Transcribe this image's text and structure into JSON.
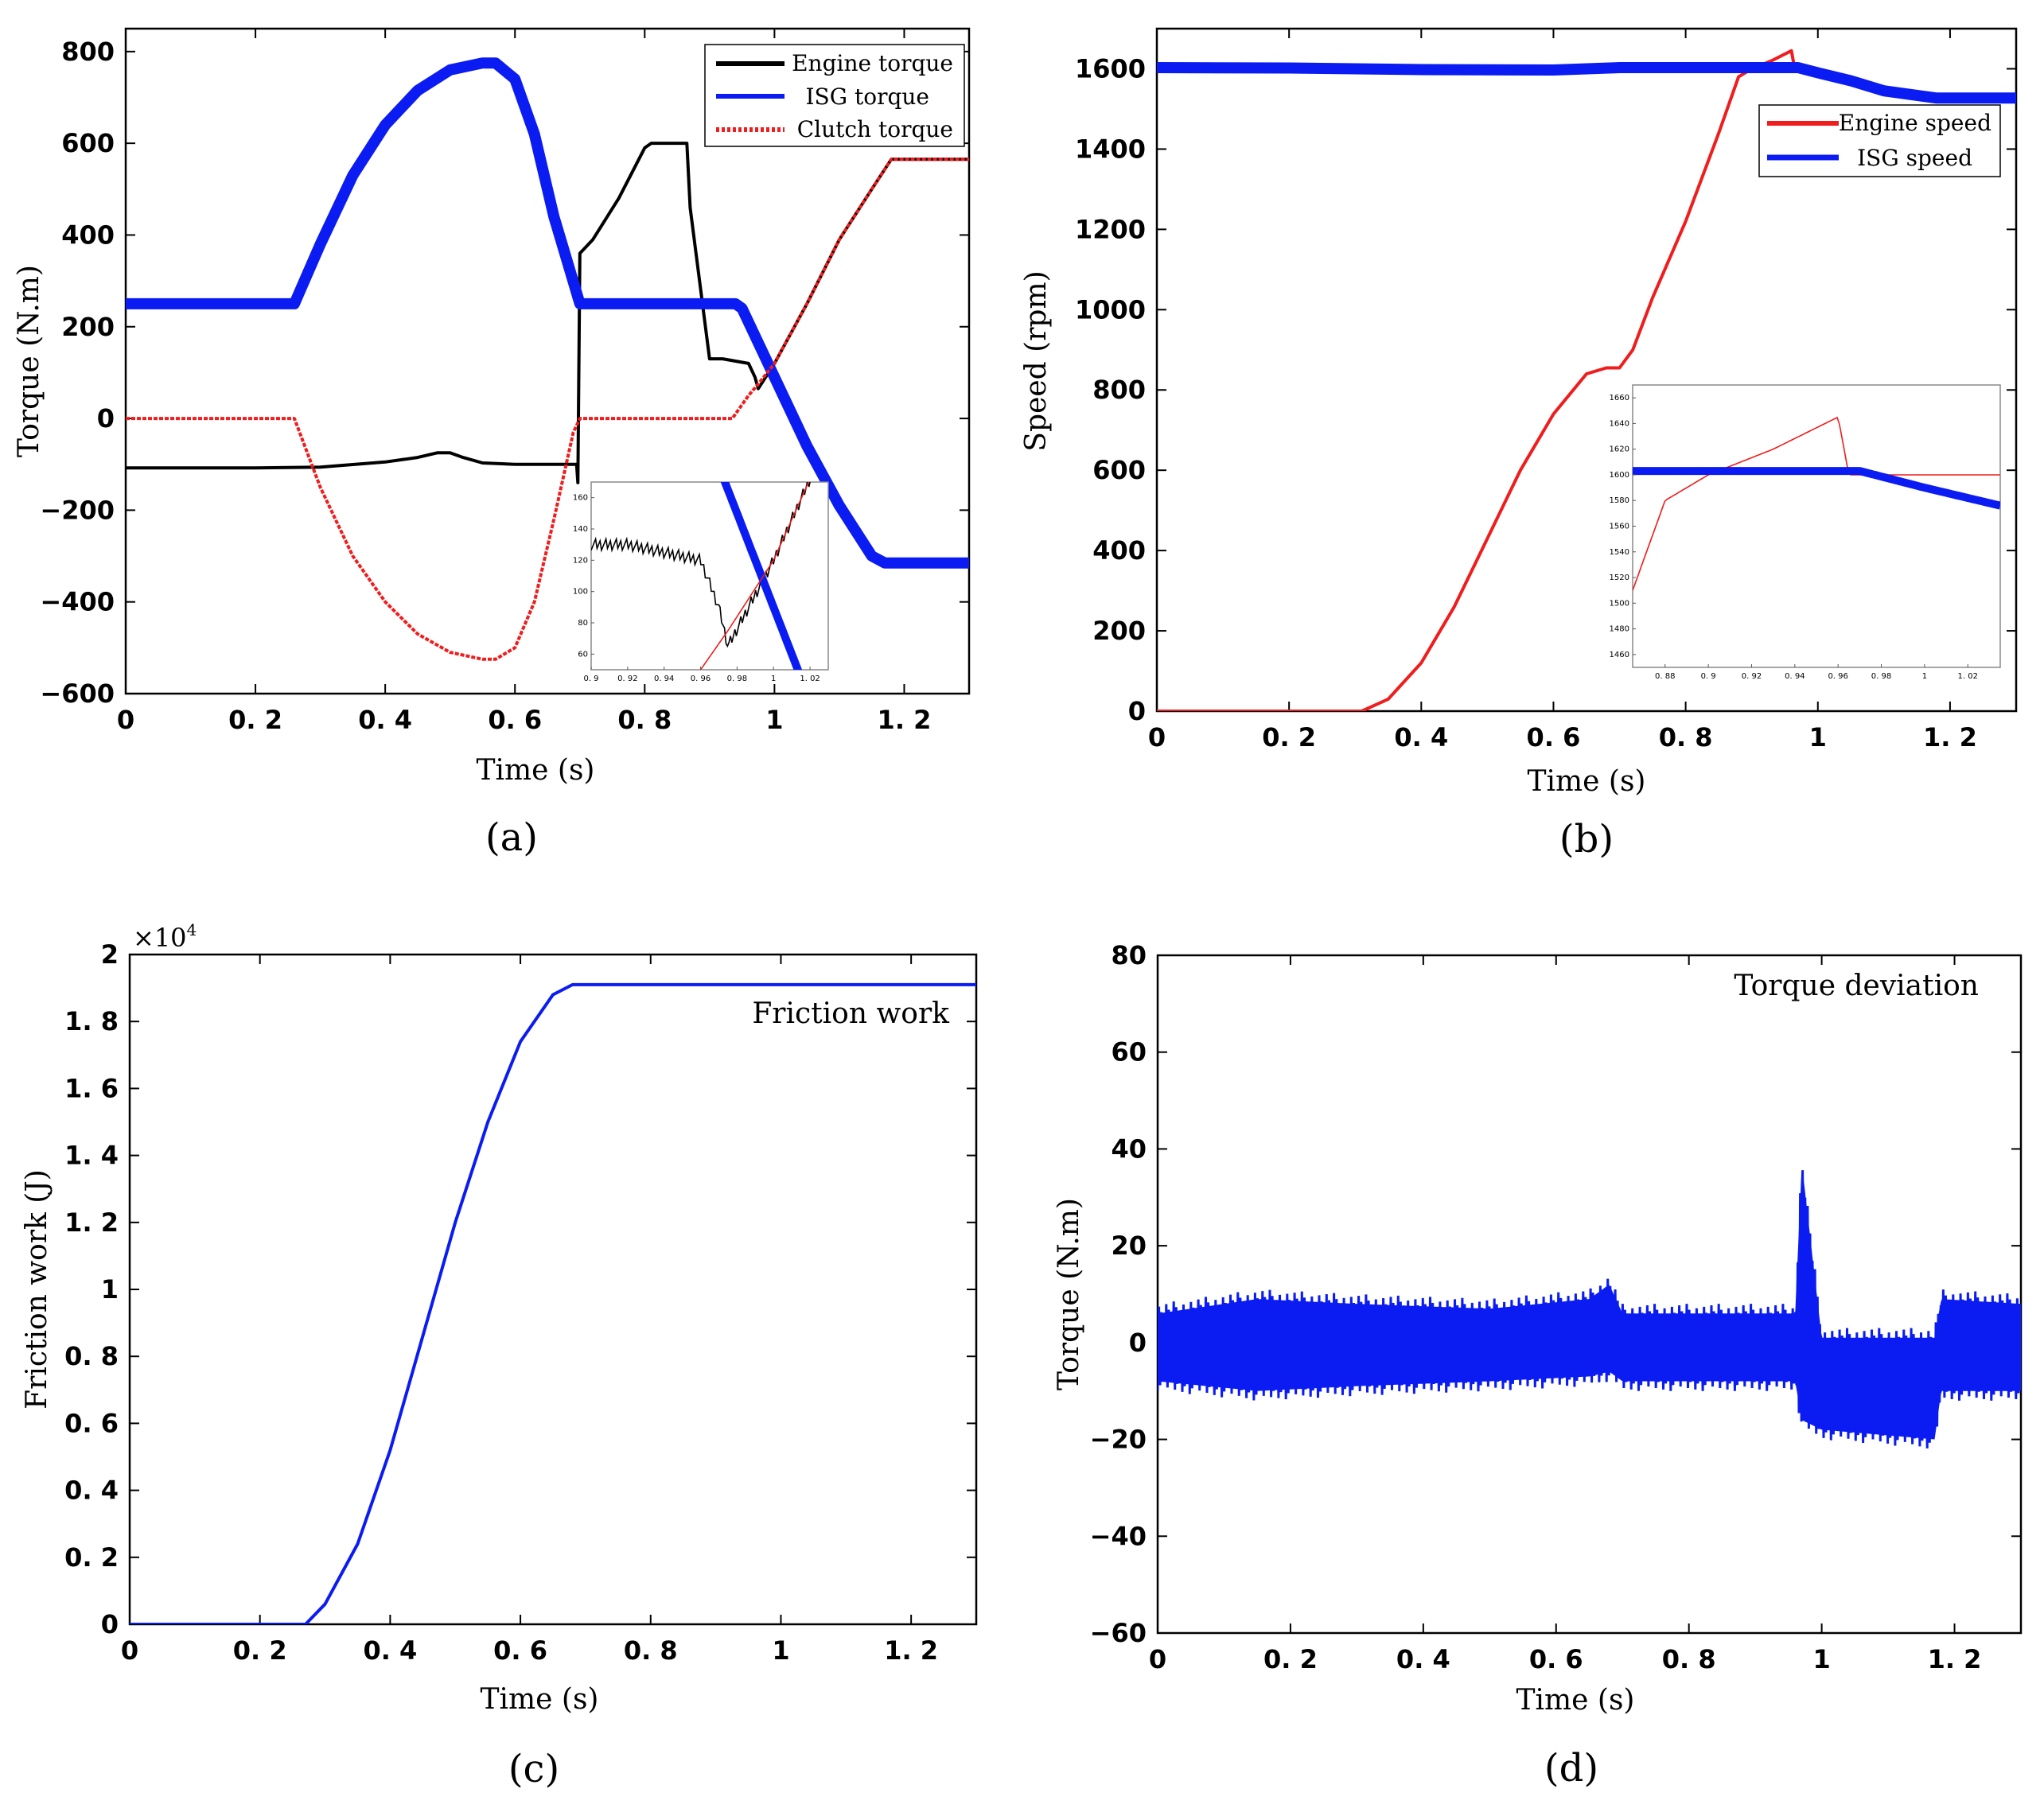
{
  "colors": {
    "engine": "#000000",
    "isg": "#0b1cf2",
    "clutch": "#ef1d1d",
    "engine_speed": "#ef1d1d"
  },
  "chart_data": [
    {
      "id": "a",
      "type": "line",
      "panel_label": "(a)",
      "xlabel": "Time  (s)",
      "ylabel": "Torque (N.m)",
      "xlim": [
        0,
        1.3
      ],
      "ylim": [
        -600,
        850
      ],
      "xticks": [
        0,
        0.2,
        0.4,
        0.6,
        0.8,
        1,
        1.2
      ],
      "xtick_labels": [
        "0",
        "0. 2",
        "0. 4",
        "0. 6",
        "0. 8",
        "1",
        "1. 2"
      ],
      "yticks": [
        -600,
        -400,
        -200,
        0,
        200,
        400,
        600,
        800
      ],
      "ytick_labels": [
        "−600",
        "−400",
        "−200",
        "0",
        "200",
        "400",
        "600",
        "800"
      ],
      "legend_position": "top-right",
      "series": [
        {
          "name": "Engine torque",
          "color": "#000000",
          "style": "line",
          "x": [
            0,
            0.2,
            0.3,
            0.4,
            0.45,
            0.48,
            0.5,
            0.52,
            0.55,
            0.6,
            0.65,
            0.695,
            0.697,
            0.7,
            0.72,
            0.76,
            0.8,
            0.81,
            0.84,
            0.865,
            0.87,
            0.9,
            0.92,
            0.96,
            0.97,
            0.975,
            1.0,
            1.05,
            1.1,
            1.15,
            1.18,
            1.2,
            1.25,
            1.3
          ],
          "y": [
            -108,
            -108,
            -106,
            -95,
            -85,
            -75,
            -75,
            -85,
            -97,
            -100,
            -100,
            -100,
            -140,
            360,
            390,
            480,
            590,
            600,
            600,
            600,
            460,
            130,
            130,
            120,
            90,
            65,
            120,
            250,
            390,
            500,
            565,
            565,
            565,
            565
          ]
        },
        {
          "name": "ISG torque",
          "color": "#0b1cf2",
          "style": "thick",
          "x": [
            0,
            0.26,
            0.3,
            0.35,
            0.4,
            0.45,
            0.5,
            0.55,
            0.57,
            0.6,
            0.63,
            0.66,
            0.7,
            0.75,
            0.8,
            0.85,
            0.9,
            0.94,
            0.95,
            1.0,
            1.05,
            1.1,
            1.15,
            1.17,
            1.2,
            1.25,
            1.3
          ],
          "y": [
            250,
            250,
            380,
            530,
            640,
            715,
            760,
            775,
            775,
            740,
            620,
            440,
            250,
            250,
            250,
            250,
            250,
            250,
            240,
            90,
            -60,
            -190,
            -300,
            -315,
            -315,
            -315,
            -315
          ]
        },
        {
          "name": "Clutch torque",
          "color": "#ef1d1d",
          "style": "dotted",
          "x": [
            0,
            0.26,
            0.3,
            0.35,
            0.4,
            0.45,
            0.5,
            0.55,
            0.57,
            0.6,
            0.63,
            0.66,
            0.69,
            0.7,
            0.75,
            0.8,
            0.85,
            0.9,
            0.935,
            0.96,
            0.975,
            1.0,
            1.05,
            1.1,
            1.15,
            1.18,
            1.2,
            1.25,
            1.3
          ],
          "y": [
            0,
            0,
            -150,
            -300,
            -400,
            -470,
            -510,
            -525,
            -525,
            -500,
            -400,
            -220,
            -30,
            0,
            0,
            0,
            0,
            0,
            0,
            50,
            75,
            120,
            250,
            390,
            500,
            565,
            565,
            565,
            565
          ]
        }
      ],
      "inset": {
        "xlim": [
          0.9,
          1.03
        ],
        "ylim": [
          50,
          170
        ],
        "xticks": [
          0.9,
          0.92,
          0.94,
          0.96,
          0.98,
          1,
          1.02
        ],
        "xtick_labels": [
          "0. 9",
          "0. 92",
          "0. 94",
          "0. 96",
          "0. 98",
          "1",
          "1. 02"
        ],
        "yticks": [
          60,
          80,
          100,
          120,
          140,
          160
        ],
        "ytick_labels": [
          "60",
          "80",
          "100",
          "120",
          "140",
          "160"
        ]
      }
    },
    {
      "id": "b",
      "type": "line",
      "panel_label": "(b)",
      "xlabel": "Time  (s)",
      "ylabel": "Speed  (rpm)",
      "xlim": [
        0,
        1.3
      ],
      "ylim": [
        0,
        1700
      ],
      "xticks": [
        0,
        0.2,
        0.4,
        0.6,
        0.8,
        1,
        1.2
      ],
      "xtick_labels": [
        "0",
        "0. 2",
        "0. 4",
        "0. 6",
        "0. 8",
        "1",
        "1. 2"
      ],
      "yticks": [
        0,
        200,
        400,
        600,
        800,
        1000,
        1200,
        1400,
        1600
      ],
      "ytick_labels": [
        "0",
        "200",
        "400",
        "600",
        "800",
        "1000",
        "1200",
        "1400",
        "1600"
      ],
      "legend_position": "top-right",
      "series": [
        {
          "name": "Engine speed",
          "color": "#ef1d1d",
          "style": "line",
          "x": [
            0,
            0.31,
            0.35,
            0.4,
            0.45,
            0.5,
            0.55,
            0.6,
            0.65,
            0.68,
            0.7,
            0.72,
            0.75,
            0.8,
            0.85,
            0.88,
            0.9,
            0.93,
            0.96,
            0.965
          ],
          "y": [
            0,
            0,
            30,
            120,
            260,
            430,
            600,
            740,
            840,
            855,
            855,
            900,
            1030,
            1220,
            1440,
            1580,
            1600,
            1620,
            1645,
            1600
          ]
        },
        {
          "name": "ISG speed",
          "color": "#0b1cf2",
          "style": "thick",
          "x": [
            0,
            0.2,
            0.4,
            0.6,
            0.7,
            0.8,
            0.9,
            0.97,
            1.0,
            1.05,
            1.1,
            1.18,
            1.25,
            1.3
          ],
          "y": [
            1603,
            1602,
            1598,
            1597,
            1603,
            1603,
            1603,
            1603,
            1590,
            1570,
            1545,
            1527,
            1527,
            1527
          ]
        }
      ],
      "inset": {
        "xlim": [
          0.865,
          1.035
        ],
        "ylim": [
          1450,
          1670
        ],
        "xticks": [
          0.88,
          0.9,
          0.92,
          0.94,
          0.96,
          0.98,
          1,
          1.02
        ],
        "xtick_labels": [
          "0. 88",
          "0. 9",
          "0. 92",
          "0. 94",
          "0. 96",
          "0. 98",
          "1",
          "1. 02"
        ],
        "yticks": [
          1460,
          1480,
          1500,
          1520,
          1540,
          1560,
          1580,
          1600,
          1620,
          1640,
          1660
        ],
        "ytick_labels": [
          "1460",
          "1480",
          "1500",
          "1520",
          "1540",
          "1560",
          "1580",
          "1600",
          "1620",
          "1640",
          "1660"
        ]
      }
    },
    {
      "id": "c",
      "type": "line",
      "panel_label": "(c)",
      "xlabel": "Time  (s)",
      "ylabel": "Friction work (J)",
      "xlim": [
        0,
        1.3
      ],
      "ylim": [
        0,
        2
      ],
      "y_multiplier": "×10",
      "y_multiplier_exponent": "4",
      "annotation": "Friction work",
      "xticks": [
        0,
        0.2,
        0.4,
        0.6,
        0.8,
        1,
        1.2
      ],
      "xtick_labels": [
        "0",
        "0. 2",
        "0. 4",
        "0. 6",
        "0. 8",
        "1",
        "1. 2"
      ],
      "yticks": [
        0,
        0.2,
        0.4,
        0.6,
        0.8,
        1,
        1.2,
        1.4,
        1.6,
        1.8,
        2
      ],
      "ytick_labels": [
        "0",
        "0. 2",
        "0. 4",
        "0. 6",
        "0. 8",
        "1",
        "1. 2",
        "1. 4",
        "1. 6",
        "1. 8",
        "2"
      ],
      "series": [
        {
          "name": "Friction work",
          "color": "#0b1cf2",
          "style": "line",
          "x": [
            0,
            0.27,
            0.3,
            0.35,
            0.4,
            0.45,
            0.5,
            0.55,
            0.6,
            0.65,
            0.68,
            0.7,
            0.75,
            1.0,
            1.3
          ],
          "y": [
            0,
            0,
            0.06,
            0.24,
            0.52,
            0.86,
            1.2,
            1.5,
            1.74,
            1.88,
            1.91,
            1.91,
            1.91,
            1.91,
            1.91
          ]
        }
      ]
    },
    {
      "id": "d",
      "type": "line",
      "panel_label": "(d)",
      "xlabel": "Time  (s)",
      "ylabel": "Torque (N.m)",
      "xlim": [
        0,
        1.3
      ],
      "ylim": [
        -60,
        80
      ],
      "annotation": "Torque deviation",
      "xticks": [
        0,
        0.2,
        0.4,
        0.6,
        0.8,
        1,
        1.2
      ],
      "xtick_labels": [
        "0",
        "0. 2",
        "0. 4",
        "0. 6",
        "0. 8",
        "1",
        "1. 2"
      ],
      "yticks": [
        -60,
        -40,
        -20,
        0,
        20,
        40,
        60,
        80
      ],
      "ytick_labels": [
        "−60",
        "−40",
        "−20",
        "0",
        "20",
        "40",
        "60",
        "80"
      ],
      "series": [
        {
          "name": "Torque deviation",
          "color": "#0b1cf2",
          "style": "band",
          "x": [
            0,
            0.15,
            0.3,
            0.5,
            0.65,
            0.68,
            0.7,
            0.96,
            0.97,
            1.0,
            1.17,
            1.18,
            1.3
          ],
          "upper": [
            8,
            11,
            10,
            9,
            11,
            14,
            8,
            8,
            39,
            3,
            3,
            11,
            10
          ],
          "lower": [
            -10,
            -12,
            -11,
            -10,
            -9,
            -8,
            -10,
            -10,
            -18,
            -20,
            -22,
            -12,
            -12
          ]
        }
      ]
    }
  ]
}
